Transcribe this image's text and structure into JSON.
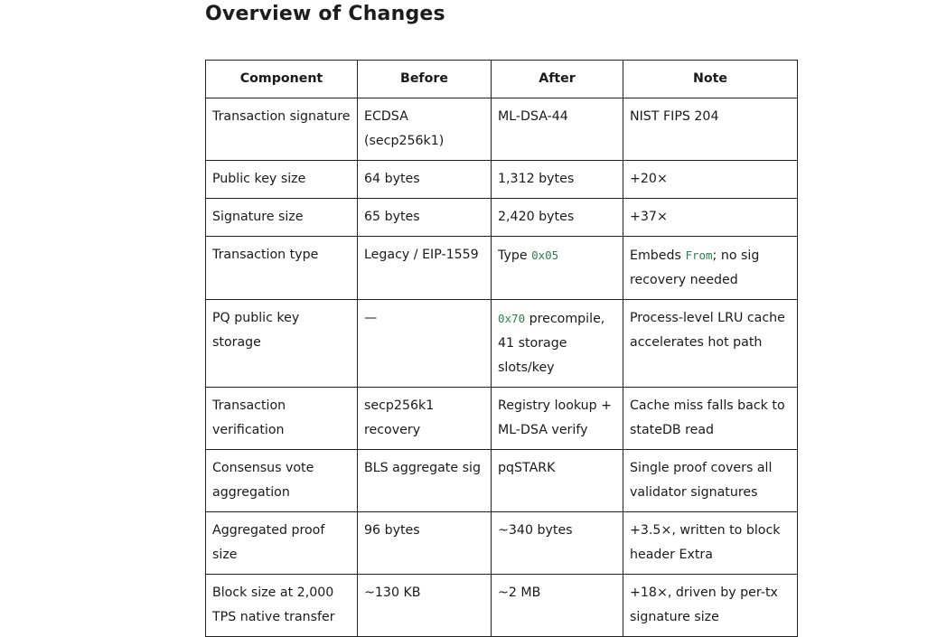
{
  "heading": "Overview of Changes",
  "table": {
    "headers": [
      "Component",
      "Before",
      "After",
      "Note"
    ],
    "rows": [
      {
        "lines": 2,
        "component": [
          "Transaction signature"
        ],
        "before": [
          "ECDSA (secp256k1)"
        ],
        "after": [
          "ML-DSA-44"
        ],
        "note": [
          "NIST FIPS 204"
        ]
      },
      {
        "lines": 1,
        "component": [
          "Public key size"
        ],
        "before": [
          "64 bytes"
        ],
        "after": [
          "1,312 bytes"
        ],
        "note": [
          "+20×"
        ]
      },
      {
        "lines": 1,
        "component": [
          "Signature size"
        ],
        "before": [
          "65 bytes"
        ],
        "after": [
          "2,420 bytes"
        ],
        "note": [
          "+37×"
        ]
      },
      {
        "lines": 2,
        "component": [
          "Transaction type"
        ],
        "before": [
          "Legacy / EIP-1559"
        ],
        "after": [
          "Type ",
          {
            "code": "0x05"
          }
        ],
        "note": [
          "Embeds ",
          {
            "code": "From"
          },
          "; no sig recovery needed"
        ]
      },
      {
        "lines": 2,
        "component": [
          "PQ public key storage"
        ],
        "before": [
          "—"
        ],
        "after": [
          {
            "code": "0x70"
          },
          " precompile, 41 storage slots/key"
        ],
        "note": [
          "Process-level LRU cache accelerates hot path"
        ]
      },
      {
        "lines": 2,
        "component": [
          "Transaction verification"
        ],
        "before": [
          "secp256k1 recovery"
        ],
        "after": [
          "Registry lookup + ML-DSA verify"
        ],
        "note": [
          "Cache miss falls back to stateDB read"
        ]
      },
      {
        "lines": 2,
        "component": [
          "Consensus vote aggregation"
        ],
        "before": [
          "BLS aggregate sig"
        ],
        "after": [
          "pqSTARK"
        ],
        "note": [
          "Single proof covers all validator signatures"
        ]
      },
      {
        "lines": 2,
        "component": [
          "Aggregated proof size"
        ],
        "before": [
          "96 bytes"
        ],
        "after": [
          "~340 bytes"
        ],
        "note": [
          "+3.5×, written to block header Extra"
        ]
      },
      {
        "lines": 2,
        "component": [
          "Block size at 2,000 TPS native transfer"
        ],
        "before": [
          "~130 KB"
        ],
        "after": [
          "~2 MB"
        ],
        "note": [
          "+18×, driven by per-tx signature size"
        ]
      }
    ]
  }
}
